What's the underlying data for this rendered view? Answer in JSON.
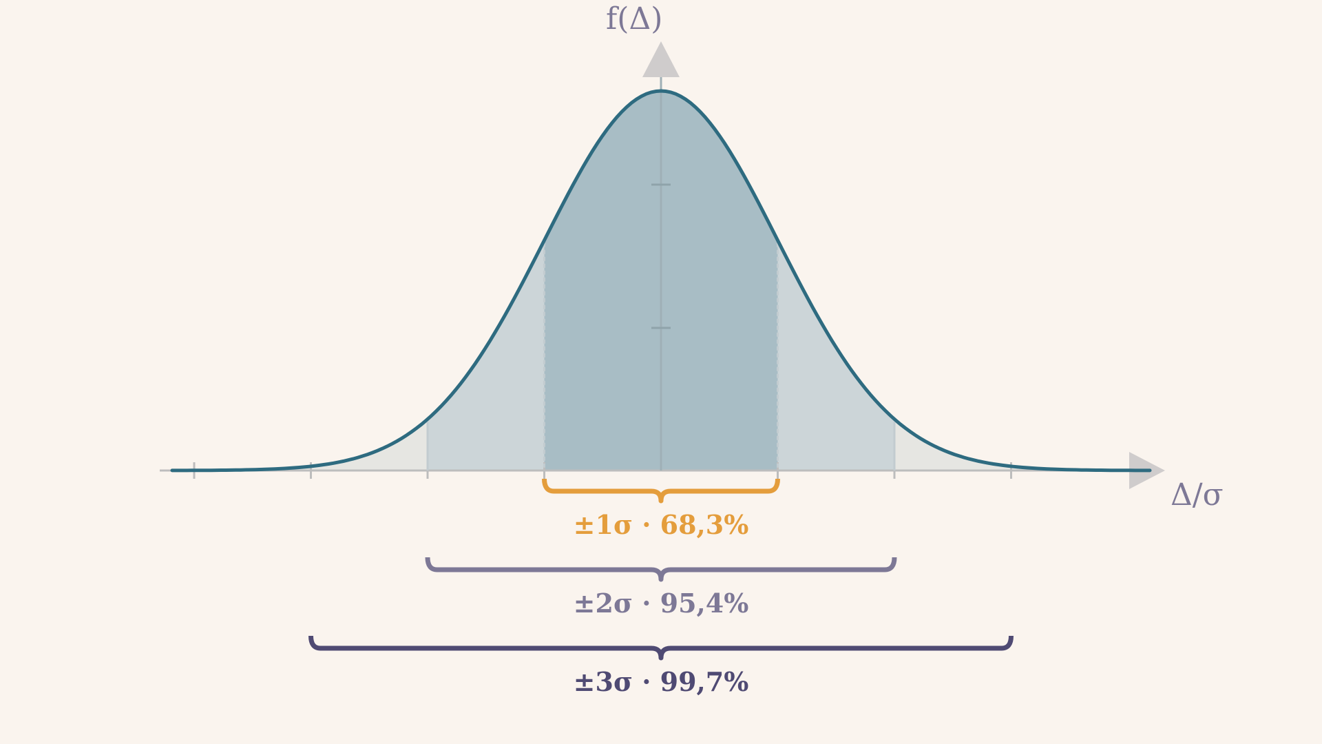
{
  "axes": {
    "y_label": "f(Δ)",
    "x_label": "Δ/σ"
  },
  "intervals": [
    {
      "label": "±1σ · 68,3%",
      "k": 1,
      "coverage_percent": 68.3,
      "color": "#e49d3c"
    },
    {
      "label": "±2σ · 95,4%",
      "k": 2,
      "coverage_percent": 95.4,
      "color": "#7d7896"
    },
    {
      "label": "±3σ · 99,7%",
      "k": 3,
      "coverage_percent": 99.7,
      "color": "#4f4a73"
    }
  ],
  "curve": {
    "type": "normal-density",
    "line_color": "#2e6b80",
    "fill_1sigma": "#a8bdc5",
    "fill_2sigma": "#ccd5d8",
    "fill_3sigma": "#e6e6e2"
  },
  "axis_color": "#bdbdbd",
  "arrow_color": "#cfcccc"
}
